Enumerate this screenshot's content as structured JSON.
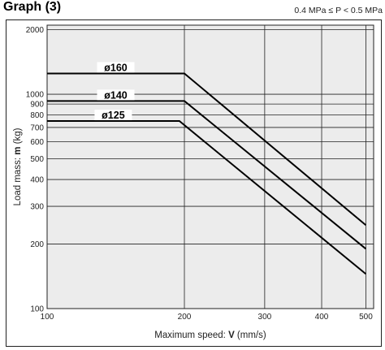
{
  "header": {
    "title": "Graph (3)",
    "condition": "0.4 MPa ≤ P < 0.5 MPa"
  },
  "colors": {
    "plot_background": "#ececec",
    "grid": "#222222",
    "series": "#000000"
  },
  "chart_data": {
    "type": "line",
    "x_scale": "log",
    "y_scale": "log",
    "xlim": [
      100,
      520
    ],
    "ylim": [
      100,
      2100
    ],
    "xlabel_prefix": "Maximum speed: ",
    "xlabel_symbol": "V",
    "xlabel_unit": " (mm/s)",
    "ylabel_prefix": "Load mass: ",
    "ylabel_symbol": "m",
    "ylabel_unit": " (kg)",
    "x_ticks": [
      100,
      200,
      300,
      400,
      500
    ],
    "x_tick_labels": [
      "100",
      "200",
      "300",
      "400",
      "500"
    ],
    "y_ticks": [
      100,
      200,
      300,
      400,
      500,
      600,
      700,
      800,
      900,
      1000,
      2000
    ],
    "y_tick_labels": [
      "100",
      "200",
      "300",
      "400",
      "500",
      "600",
      "700",
      "800",
      "900",
      "1000",
      "2000"
    ],
    "grid": true,
    "series": [
      {
        "name": "ø160",
        "x": [
          100,
          200,
          500
        ],
        "y": [
          1250,
          1250,
          245
        ]
      },
      {
        "name": "ø140",
        "x": [
          100,
          200,
          500
        ],
        "y": [
          930,
          930,
          190
        ]
      },
      {
        "name": "ø125",
        "x": [
          100,
          195,
          500
        ],
        "y": [
          750,
          750,
          145
        ]
      }
    ]
  }
}
